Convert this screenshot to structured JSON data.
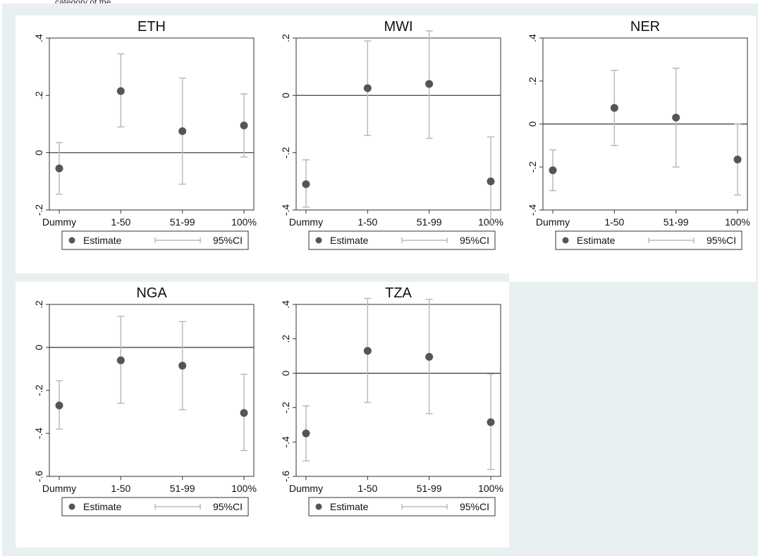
{
  "caption": "category of the",
  "colors": {
    "outer_background": "#e8f0f2",
    "panel_background": "#ffffff",
    "marker": "#555555",
    "ci_line": "#bbbbbb",
    "zero_line": "#333333",
    "axis": "#333333"
  },
  "legend": {
    "estimate_label": "Estimate",
    "ci_label": "95%CI"
  },
  "chart_data": [
    {
      "type": "scatter",
      "title": "ETH",
      "categories": [
        "Dummy",
        "1-50",
        "51-99",
        "100%"
      ],
      "estimate": [
        -0.055,
        0.215,
        0.075,
        0.095
      ],
      "ci_low": [
        -0.145,
        0.09,
        -0.11,
        -0.015
      ],
      "ci_high": [
        0.035,
        0.345,
        0.26,
        0.205
      ],
      "ylim": [
        -0.2,
        0.4
      ],
      "yticks": [
        -0.2,
        0,
        0.2,
        0.4
      ],
      "ytick_labels": [
        "-.2",
        "0",
        ".2",
        ".4"
      ],
      "reference_line": 0,
      "legend": "bottom"
    },
    {
      "type": "scatter",
      "title": "MWI",
      "categories": [
        "Dummy",
        "1-50",
        "51-99",
        "100%"
      ],
      "estimate": [
        -0.31,
        0.025,
        0.04,
        -0.3
      ],
      "ci_low": [
        -0.39,
        -0.14,
        -0.15,
        -0.45
      ],
      "ci_high": [
        -0.225,
        0.19,
        0.225,
        -0.145
      ],
      "ylim": [
        -0.4,
        0.2
      ],
      "yticks": [
        -0.4,
        -0.2,
        0,
        0.2
      ],
      "ytick_labels": [
        "-.4",
        "-.2",
        "0",
        ".2"
      ],
      "reference_line": 0,
      "legend": "bottom"
    },
    {
      "type": "scatter",
      "title": "NER",
      "categories": [
        "Dummy",
        "1-50",
        "51-99",
        "100%"
      ],
      "estimate": [
        -0.215,
        0.075,
        0.03,
        -0.165
      ],
      "ci_low": [
        -0.31,
        -0.1,
        -0.2,
        -0.33
      ],
      "ci_high": [
        -0.12,
        0.25,
        0.26,
        0.0
      ],
      "ylim": [
        -0.4,
        0.4
      ],
      "yticks": [
        -0.4,
        -0.2,
        0,
        0.2,
        0.4
      ],
      "ytick_labels": [
        "-.4",
        "-.2",
        "0",
        ".2",
        ".4"
      ],
      "reference_line": 0,
      "legend": "bottom"
    },
    {
      "type": "scatter",
      "title": "NGA",
      "categories": [
        "Dummy",
        "1-50",
        "51-99",
        "100%"
      ],
      "estimate": [
        -0.27,
        -0.06,
        -0.085,
        -0.305
      ],
      "ci_low": [
        -0.38,
        -0.26,
        -0.29,
        -0.48
      ],
      "ci_high": [
        -0.155,
        0.145,
        0.12,
        -0.125
      ],
      "ylim": [
        -0.6,
        0.2
      ],
      "yticks": [
        -0.6,
        -0.4,
        -0.2,
        0,
        0.2
      ],
      "ytick_labels": [
        "-.6",
        "-.4",
        "-.2",
        "0",
        ".2"
      ],
      "reference_line": 0,
      "legend": "bottom"
    },
    {
      "type": "scatter",
      "title": "TZA",
      "categories": [
        "Dummy",
        "1-50",
        "51-99",
        "100%"
      ],
      "estimate": [
        -0.35,
        0.13,
        0.095,
        -0.285
      ],
      "ci_low": [
        -0.51,
        -0.17,
        -0.235,
        -0.56
      ],
      "ci_high": [
        -0.19,
        0.435,
        0.43,
        -0.005
      ],
      "ylim": [
        -0.6,
        0.4
      ],
      "yticks": [
        -0.6,
        -0.4,
        -0.2,
        0,
        0.2,
        0.4
      ],
      "ytick_labels": [
        "-.6",
        "-.4",
        "-.2",
        "0",
        ".2",
        ".4"
      ],
      "reference_line": 0,
      "legend": "bottom"
    }
  ]
}
